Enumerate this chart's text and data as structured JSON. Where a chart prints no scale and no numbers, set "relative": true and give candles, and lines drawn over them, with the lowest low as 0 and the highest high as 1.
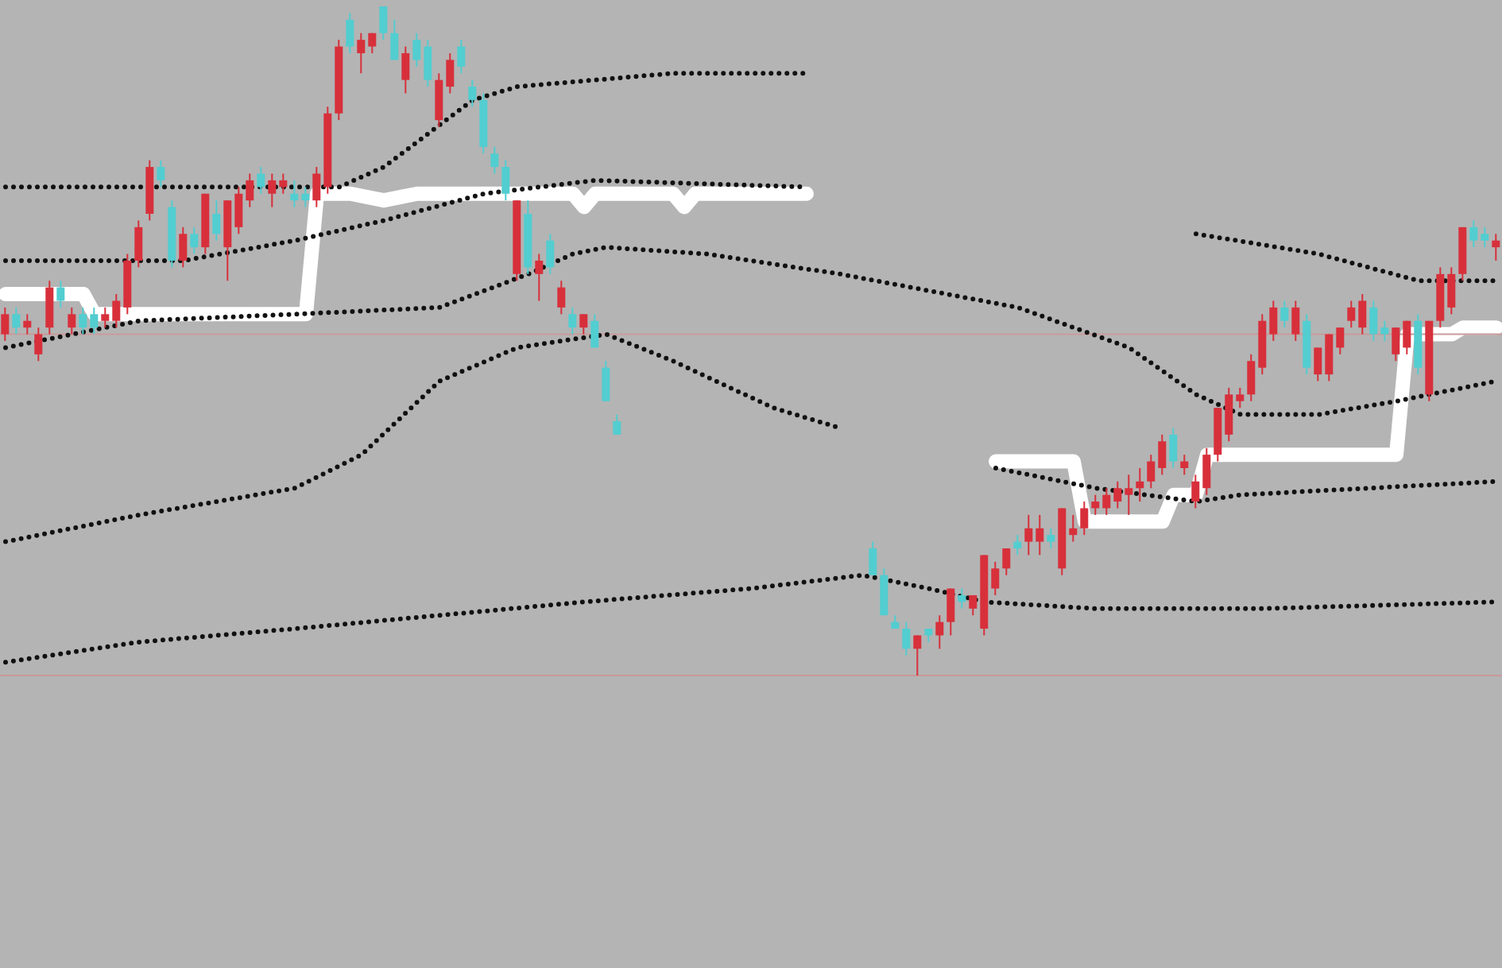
{
  "chart_data": {
    "type": "candlestick",
    "relative": true,
    "tick_labels": false,
    "categories": [
      null,
      null,
      null,
      null,
      null,
      null,
      null,
      null,
      null,
      null,
      null,
      null,
      null,
      null,
      null,
      null,
      null,
      null,
      null,
      null,
      null,
      null,
      null,
      null,
      null,
      null,
      null,
      null,
      null,
      null,
      null,
      null,
      null,
      null,
      null,
      null,
      null,
      null,
      null,
      null,
      null,
      null,
      null,
      null,
      null,
      null,
      null,
      null,
      null,
      null,
      null,
      null,
      null,
      null,
      null,
      null,
      null,
      null,
      null,
      null,
      null,
      null,
      null,
      null,
      null,
      null,
      null,
      null,
      null,
      null,
      null,
      null,
      null,
      null,
      null,
      null,
      null,
      null,
      null,
      null,
      null,
      null,
      null,
      null,
      null,
      null,
      null,
      null,
      null,
      null,
      null,
      null,
      null,
      null,
      null,
      null,
      null,
      null,
      null,
      null,
      null,
      null,
      null,
      null,
      null,
      null,
      null,
      null,
      null,
      null,
      null,
      null,
      null,
      null,
      null,
      null,
      null,
      null,
      null,
      null,
      null,
      null,
      null,
      null,
      null,
      null,
      null,
      null,
      null,
      null,
      null,
      null,
      null,
      null,
      null
    ],
    "ohlc": [
      [
        0.51,
        0.55,
        0.5,
        0.54
      ],
      [
        0.54,
        0.55,
        0.51,
        0.52
      ],
      [
        0.52,
        0.54,
        0.51,
        0.53
      ],
      [
        0.48,
        0.52,
        0.47,
        0.51
      ],
      [
        0.52,
        0.59,
        0.51,
        0.58
      ],
      [
        0.58,
        0.59,
        0.55,
        0.56
      ],
      [
        0.52,
        0.55,
        0.51,
        0.54
      ],
      [
        0.54,
        0.55,
        0.51,
        0.52
      ],
      [
        0.54,
        0.55,
        0.51,
        0.52
      ],
      [
        0.53,
        0.55,
        0.52,
        0.54
      ],
      [
        0.53,
        0.57,
        0.52,
        0.56
      ],
      [
        0.55,
        0.63,
        0.54,
        0.62
      ],
      [
        0.62,
        0.68,
        0.61,
        0.67
      ],
      [
        0.69,
        0.77,
        0.68,
        0.76
      ],
      [
        0.76,
        0.77,
        0.73,
        0.74
      ],
      [
        0.7,
        0.71,
        0.61,
        0.62
      ],
      [
        0.62,
        0.67,
        0.61,
        0.66
      ],
      [
        0.66,
        0.67,
        0.63,
        0.64
      ],
      [
        0.64,
        0.72,
        0.63,
        0.72
      ],
      [
        0.69,
        0.71,
        0.65,
        0.66
      ],
      [
        0.64,
        0.71,
        0.59,
        0.71
      ],
      [
        0.67,
        0.73,
        0.66,
        0.72
      ],
      [
        0.71,
        0.75,
        0.7,
        0.74
      ],
      [
        0.75,
        0.76,
        0.72,
        0.73
      ],
      [
        0.72,
        0.75,
        0.7,
        0.74
      ],
      [
        0.73,
        0.75,
        0.72,
        0.74
      ],
      [
        0.72,
        0.74,
        0.7,
        0.71
      ],
      [
        0.72,
        0.73,
        0.7,
        0.71
      ],
      [
        0.71,
        0.76,
        0.7,
        0.75
      ],
      [
        0.73,
        0.85,
        0.72,
        0.84
      ],
      [
        0.84,
        0.95,
        0.83,
        0.94
      ],
      [
        0.98,
        0.99,
        0.93,
        0.94
      ],
      [
        0.93,
        0.96,
        0.9,
        0.95
      ],
      [
        0.94,
        0.96,
        0.93,
        0.96
      ],
      [
        1.0,
        1.0,
        0.95,
        0.96
      ],
      [
        0.96,
        0.98,
        0.92,
        0.92
      ],
      [
        0.89,
        0.94,
        0.87,
        0.93
      ],
      [
        0.95,
        0.96,
        0.91,
        0.92
      ],
      [
        0.94,
        0.95,
        0.88,
        0.89
      ],
      [
        0.83,
        0.9,
        0.82,
        0.89
      ],
      [
        0.88,
        0.93,
        0.87,
        0.92
      ],
      [
        0.94,
        0.95,
        0.9,
        0.91
      ],
      [
        0.88,
        0.89,
        0.85,
        0.86
      ],
      [
        0.86,
        0.87,
        0.78,
        0.79
      ],
      [
        0.78,
        0.79,
        0.75,
        0.76
      ],
      [
        0.76,
        0.77,
        0.71,
        0.72
      ],
      [
        0.6,
        0.71,
        0.59,
        0.71
      ],
      [
        0.69,
        0.71,
        0.6,
        0.61
      ],
      [
        0.6,
        0.63,
        0.56,
        0.62
      ],
      [
        0.65,
        0.66,
        0.6,
        0.61
      ],
      [
        0.55,
        0.59,
        0.54,
        0.58
      ],
      [
        0.54,
        0.55,
        0.51,
        0.52
      ],
      [
        0.52,
        0.54,
        0.51,
        0.54
      ],
      [
        0.53,
        0.54,
        0.49,
        0.49
      ],
      [
        0.46,
        0.47,
        0.41,
        0.41
      ],
      [
        0.38,
        0.39,
        0.36,
        0.36
      ],
      null,
      null,
      null,
      null,
      null,
      null,
      null,
      null,
      null,
      null,
      null,
      null,
      null,
      null,
      null,
      null,
      null,
      null,
      null,
      null,
      null,
      null,
      [
        0.19,
        0.2,
        0.15,
        0.15
      ],
      [
        0.15,
        0.16,
        0.09,
        0.09
      ],
      [
        0.08,
        0.09,
        0.07,
        0.07
      ],
      [
        0.07,
        0.08,
        0.03,
        0.04
      ],
      [
        0.04,
        0.06,
        0,
        0.06
      ],
      [
        0.07,
        0.07,
        0.05,
        0.06
      ],
      [
        0.06,
        0.09,
        0.04,
        0.08
      ],
      [
        0.08,
        0.13,
        0.06,
        0.13
      ],
      [
        0.12,
        0.13,
        0.1,
        0.11
      ],
      [
        0.1,
        0.12,
        0.09,
        0.12
      ],
      [
        0.07,
        0.18,
        0.06,
        0.18
      ],
      [
        0.13,
        0.17,
        0.12,
        0.16
      ],
      [
        0.16,
        0.19,
        0.15,
        0.19
      ],
      [
        0.2,
        0.21,
        0.18,
        0.19
      ],
      [
        0.2,
        0.24,
        0.18,
        0.22
      ],
      [
        0.2,
        0.24,
        0.18,
        0.22
      ],
      [
        0.21,
        0.22,
        0.19,
        0.2
      ],
      [
        0.16,
        0.25,
        0.15,
        0.25
      ],
      [
        0.21,
        0.24,
        0.2,
        0.22
      ],
      [
        0.22,
        0.26,
        0.21,
        0.25
      ],
      [
        0.25,
        0.27,
        0.24,
        0.26
      ],
      [
        0.25,
        0.28,
        0.24,
        0.27
      ],
      [
        0.26,
        0.29,
        0.25,
        0.28
      ],
      [
        0.27,
        0.3,
        0.24,
        0.28
      ],
      [
        0.28,
        0.31,
        0.26,
        0.29
      ],
      [
        0.29,
        0.33,
        0.28,
        0.32
      ],
      [
        0.31,
        0.36,
        0.3,
        0.35
      ],
      [
        0.36,
        0.37,
        0.31,
        0.32
      ],
      [
        0.31,
        0.33,
        0.3,
        0.32
      ],
      [
        0.26,
        0.3,
        0.25,
        0.29
      ],
      [
        0.28,
        0.34,
        0.27,
        0.33
      ],
      [
        0.33,
        0.4,
        0.32,
        0.4
      ],
      [
        0.36,
        0.43,
        0.35,
        0.42
      ],
      [
        0.41,
        0.43,
        0.4,
        0.42
      ],
      [
        0.42,
        0.48,
        0.41,
        0.47
      ],
      [
        0.46,
        0.54,
        0.45,
        0.53
      ],
      [
        0.51,
        0.56,
        0.5,
        0.55
      ],
      [
        0.55,
        0.56,
        0.52,
        0.53
      ],
      [
        0.51,
        0.56,
        0.5,
        0.55
      ],
      [
        0.53,
        0.54,
        0.45,
        0.46
      ],
      [
        0.45,
        0.49,
        0.44,
        0.49
      ],
      [
        0.45,
        0.51,
        0.44,
        0.51
      ],
      [
        0.49,
        0.52,
        0.48,
        0.52
      ],
      [
        0.53,
        0.56,
        0.52,
        0.55
      ],
      [
        0.52,
        0.57,
        0.51,
        0.56
      ],
      [
        0.55,
        0.56,
        0.5,
        0.51
      ],
      [
        0.52,
        0.53,
        0.5,
        0.51
      ],
      [
        0.48,
        0.52,
        0.47,
        0.52
      ],
      [
        0.49,
        0.53,
        0.48,
        0.53
      ],
      [
        0.53,
        0.54,
        0.45,
        0.46
      ],
      [
        0.42,
        0.53,
        0.41,
        0.53
      ],
      [
        0.53,
        0.61,
        0.52,
        0.6
      ],
      [
        0.55,
        0.61,
        0.54,
        0.6
      ],
      [
        0.6,
        0.67,
        0.59,
        0.67
      ],
      [
        0.67,
        0.68,
        0.64,
        0.65
      ],
      [
        0.66,
        0.67,
        0.64,
        0.65
      ],
      [
        0.64,
        0.66,
        0.62,
        0.65
      ]
    ],
    "colors": [
      "#d7303b",
      "#52cdd0",
      "#d7303b",
      "#d7303b",
      "#d7303b",
      "#52cdd0",
      "#d7303b",
      "#52cdd0",
      "#52cdd0",
      "#d7303b",
      "#d7303b",
      "#d7303b",
      "#d7303b",
      "#d7303b",
      "#52cdd0",
      "#52cdd0",
      "#d7303b",
      "#52cdd0",
      "#d7303b",
      "#52cdd0",
      "#d7303b",
      "#d7303b",
      "#d7303b",
      "#52cdd0",
      "#d7303b",
      "#d7303b",
      "#52cdd0",
      "#52cdd0",
      "#d7303b",
      "#d7303b",
      "#d7303b",
      "#52cdd0",
      "#d7303b",
      "#d7303b",
      "#52cdd0",
      "#52cdd0",
      "#d7303b",
      "#52cdd0",
      "#52cdd0",
      "#d7303b",
      "#d7303b",
      "#52cdd0",
      "#52cdd0",
      "#52cdd0",
      "#52cdd0",
      "#52cdd0",
      "#d7303b",
      "#52cdd0",
      "#d7303b",
      "#52cdd0",
      "#d7303b",
      "#52cdd0",
      "#d7303b",
      "#52cdd0",
      "#52cdd0",
      "#52cdd0",
      null,
      null,
      null,
      null,
      null,
      null,
      null,
      null,
      null,
      null,
      null,
      null,
      null,
      null,
      null,
      null,
      null,
      null,
      null,
      null,
      null,
      null,
      "#52cdd0",
      "#52cdd0",
      "#52cdd0",
      "#52cdd0",
      "#d7303b",
      "#52cdd0",
      "#d7303b",
      "#d7303b",
      "#52cdd0",
      "#d7303b",
      "#d7303b",
      "#d7303b",
      "#d7303b",
      "#52cdd0",
      "#d7303b",
      "#d7303b",
      "#52cdd0",
      "#d7303b",
      "#d7303b",
      "#d7303b",
      "#d7303b",
      "#d7303b",
      "#d7303b",
      "#d7303b",
      "#d7303b",
      "#d7303b",
      "#d7303b",
      "#52cdd0",
      "#d7303b",
      "#d7303b",
      "#d7303b",
      "#d7303b",
      "#d7303b",
      "#d7303b",
      "#d7303b",
      "#d7303b",
      "#d7303b",
      "#52cdd0",
      "#d7303b",
      "#52cdd0",
      "#d7303b",
      "#d7303b",
      "#d7303b",
      "#d7303b",
      "#d7303b",
      "#52cdd0",
      "#52cdd0",
      "#d7303b",
      "#d7303b",
      "#52cdd0",
      "#d7303b",
      "#d7303b",
      "#d7303b",
      "#d7303b",
      "#52cdd0",
      "#52cdd0",
      "#d7303b"
    ],
    "series": [
      {
        "type": "line",
        "color": "#ffffff",
        "line_style": "solid",
        "values": [
          0.57,
          null,
          null,
          null,
          null,
          null,
          null,
          0.57,
          0.54,
          null,
          null,
          null,
          null,
          null,
          null,
          null,
          null,
          null,
          null,
          null,
          null,
          null,
          null,
          null,
          null,
          null,
          null,
          0.54,
          0.72,
          null,
          null,
          0.72,
          null,
          null,
          0.71,
          null,
          null,
          0.72,
          null,
          null,
          null,
          null,
          null,
          null,
          null,
          null,
          null,
          null,
          null,
          null,
          null,
          0.72,
          0.7,
          0.72,
          null,
          null,
          null,
          null,
          null,
          null,
          0.72,
          0.7,
          0.72,
          null,
          null,
          null,
          null,
          null,
          null,
          null,
          null,
          null,
          0.72,
          null,
          null,
          null,
          null,
          null,
          null,
          null,
          null,
          null,
          null,
          null,
          null,
          null,
          null,
          null,
          null,
          null,
          null,
          null,
          null,
          null,
          null,
          null,
          null,
          null,
          null,
          null,
          null,
          null,
          null,
          null,
          null,
          null,
          null,
          null,
          null,
          null,
          null,
          null,
          null,
          null,
          null,
          null,
          null,
          null,
          null,
          null,
          null,
          null,
          null,
          null,
          null,
          null,
          null,
          null,
          null,
          null,
          null,
          null,
          null,
          null,
          null
        ]
      },
      {
        "type": "line",
        "color": "#ffffff",
        "line_style": "solid",
        "values": [
          null,
          null,
          null,
          null,
          null,
          null,
          null,
          null,
          null,
          null,
          null,
          null,
          null,
          null,
          null,
          null,
          null,
          null,
          null,
          null,
          null,
          null,
          null,
          null,
          null,
          null,
          null,
          null,
          null,
          null,
          null,
          null,
          null,
          null,
          null,
          null,
          null,
          null,
          null,
          null,
          null,
          null,
          null,
          null,
          null,
          null,
          null,
          null,
          null,
          null,
          null,
          null,
          null,
          null,
          null,
          null,
          null,
          null,
          null,
          null,
          null,
          null,
          null,
          null,
          null,
          null,
          null,
          null,
          null,
          null,
          null,
          null,
          null,
          null,
          null,
          null,
          null,
          null,
          null,
          null,
          null,
          null,
          null,
          null,
          null,
          null,
          null,
          null,
          null,
          0.32,
          null,
          null,
          null,
          null,
          null,
          null,
          0.32,
          0.23,
          null,
          null,
          null,
          null,
          null,
          null,
          0.23,
          0.27,
          null,
          0.27,
          0.33,
          null,
          null,
          null,
          null,
          null,
          null,
          null,
          null,
          null,
          null,
          null,
          null,
          null,
          null,
          null,
          null,
          0.33,
          0.51,
          null,
          null,
          null,
          0.51,
          0.52,
          null,
          null,
          0.52
        ]
      },
      {
        "type": "line",
        "color": "#111111",
        "line_style": "dotted",
        "values": [
          0.73,
          null,
          null,
          null,
          null,
          null,
          null,
          null,
          null,
          null,
          null,
          null,
          null,
          null,
          null,
          null,
          null,
          null,
          null,
          null,
          null,
          null,
          null,
          null,
          null,
          null,
          null,
          null,
          null,
          null,
          0.73,
          null,
          null,
          null,
          0.76,
          null,
          null,
          null,
          0.81,
          null,
          null,
          null,
          0.86,
          null,
          null,
          null,
          0.88,
          null,
          null,
          null,
          null,
          null,
          null,
          0.89,
          null,
          null,
          null,
          null,
          null,
          null,
          0.9,
          null,
          null,
          null,
          null,
          null,
          null,
          null,
          null,
          null,
          null,
          null,
          0.9,
          null,
          null,
          null,
          null,
          null,
          null,
          null,
          null,
          null,
          null,
          null,
          null,
          null,
          null,
          null,
          null,
          null,
          null,
          null,
          null,
          null,
          null,
          null,
          null,
          null,
          null,
          null,
          null,
          null,
          null,
          null,
          null,
          null,
          null,
          null,
          null,
          null,
          null,
          null,
          null,
          null,
          null,
          null,
          null,
          null,
          null,
          null,
          null,
          null,
          null,
          null,
          null,
          null,
          null,
          null,
          null,
          null,
          null,
          null,
          null,
          null,
          null
        ]
      },
      {
        "type": "line",
        "color": "#111111",
        "line_style": "dotted",
        "values": [
          0.62,
          null,
          null,
          null,
          null,
          null,
          null,
          null,
          null,
          null,
          null,
          null,
          null,
          null,
          null,
          null,
          0.62,
          null,
          null,
          null,
          null,
          null,
          null,
          null,
          null,
          null,
          0.65,
          null,
          null,
          null,
          null,
          null,
          null,
          null,
          0.68,
          null,
          null,
          null,
          null,
          null,
          null,
          null,
          null,
          0.72,
          null,
          null,
          null,
          null,
          null,
          null,
          null,
          null,
          null,
          0.74,
          null,
          null,
          null,
          null,
          null,
          null,
          null,
          null,
          null,
          null,
          null,
          null,
          null,
          null,
          null,
          null,
          null,
          null,
          0.73,
          null,
          null,
          null,
          null,
          null,
          null,
          null,
          null,
          null,
          null,
          null,
          null,
          null,
          null,
          null,
          null,
          null,
          null,
          null,
          null,
          null,
          null,
          null,
          null,
          null,
          null,
          null,
          null,
          null,
          null,
          null,
          null,
          null,
          null,
          null,
          null,
          null,
          null,
          null,
          null,
          null,
          null,
          null,
          null,
          null,
          null,
          null,
          null,
          null,
          null,
          null,
          null,
          null,
          null,
          null,
          null,
          null,
          null,
          null,
          null,
          null,
          null
        ]
      },
      {
        "type": "line",
        "color": "#111111",
        "line_style": "dotted",
        "values": [
          null,
          null,
          null,
          null,
          null,
          null,
          null,
          null,
          null,
          null,
          null,
          null,
          null,
          null,
          null,
          null,
          null,
          null,
          null,
          null,
          null,
          null,
          null,
          null,
          null,
          null,
          null,
          null,
          null,
          null,
          null,
          null,
          null,
          null,
          null,
          null,
          null,
          null,
          null,
          null,
          null,
          null,
          null,
          null,
          null,
          null,
          null,
          null,
          null,
          null,
          null,
          null,
          null,
          null,
          null,
          null,
          null,
          null,
          null,
          null,
          null,
          null,
          null,
          null,
          null,
          null,
          null,
          null,
          null,
          null,
          null,
          null,
          null,
          null,
          null,
          null,
          null,
          null,
          null,
          null,
          null,
          null,
          null,
          null,
          null,
          null,
          null,
          null,
          null,
          null,
          null,
          null,
          null,
          null,
          null,
          null,
          null,
          null,
          null,
          null,
          null,
          null,
          null,
          null,
          null,
          null,
          null,
          0.66,
          null,
          null,
          null,
          null,
          null,
          null,
          null,
          null,
          null,
          null,
          0.63,
          null,
          null,
          null,
          null,
          null,
          null,
          null,
          null,
          0.59,
          null,
          null,
          null,
          null,
          null,
          null,
          0.59
        ]
      },
      {
        "type": "line",
        "color": "#111111",
        "line_style": "dotted",
        "values": [
          0.49,
          null,
          null,
          null,
          null,
          null,
          null,
          null,
          null,
          null,
          null,
          null,
          0.53,
          null,
          null,
          null,
          null,
          null,
          null,
          null,
          null,
          null,
          null,
          null,
          null,
          null,
          0.54,
          null,
          null,
          null,
          null,
          null,
          null,
          null,
          null,
          null,
          null,
          null,
          null,
          0.55,
          null,
          null,
          null,
          null,
          null,
          null,
          null,
          0.6,
          null,
          null,
          null,
          0.63,
          null,
          null,
          0.64,
          null,
          null,
          null,
          null,
          null,
          null,
          null,
          null,
          0.63,
          null,
          null,
          null,
          null,
          null,
          null,
          null,
          null,
          null,
          null,
          null,
          0.6,
          null,
          null,
          null,
          null,
          null,
          null,
          null,
          null,
          null,
          null,
          null,
          null,
          null,
          null,
          null,
          0.55,
          null,
          null,
          null,
          null,
          null,
          null,
          null,
          null,
          null,
          0.49,
          null,
          null,
          null,
          null,
          null,
          0.42,
          null,
          null,
          null,
          0.39,
          null,
          null,
          null,
          null,
          null,
          null,
          0.39,
          null,
          null,
          null,
          null,
          null,
          null,
          0.41,
          null,
          null,
          null,
          null,
          null,
          null,
          null,
          null,
          0.44
        ]
      },
      {
        "type": "line",
        "color": "#111111",
        "line_style": "dotted",
        "values": [
          0.2,
          null,
          null,
          null,
          null,
          null,
          null,
          null,
          null,
          null,
          null,
          null,
          0.24,
          null,
          null,
          null,
          null,
          null,
          null,
          null,
          null,
          null,
          null,
          null,
          null,
          null,
          0.28,
          null,
          null,
          null,
          null,
          null,
          0.33,
          null,
          null,
          null,
          null,
          null,
          null,
          0.44,
          null,
          null,
          null,
          null,
          null,
          null,
          0.49,
          null,
          null,
          null,
          null,
          null,
          null,
          null,
          0.51,
          null,
          null,
          null,
          null,
          null,
          0.47,
          null,
          null,
          null,
          null,
          null,
          null,
          null,
          null,
          0.4,
          null,
          null,
          null,
          null,
          null,
          0.37,
          null,
          null,
          null,
          null,
          null,
          null,
          null,
          null,
          null,
          null,
          null,
          null,
          null,
          null,
          null,
          null,
          null,
          null,
          null,
          null,
          null,
          null,
          null,
          null,
          null,
          null,
          null,
          null,
          null,
          null,
          null,
          null,
          null,
          null,
          null,
          null,
          null,
          null,
          null,
          null,
          null,
          null,
          null,
          null,
          null,
          null,
          null,
          null,
          null,
          null,
          null,
          null,
          null,
          null,
          null,
          null,
          null,
          null,
          null
        ]
      },
      {
        "type": "line",
        "color": "#111111",
        "line_style": "dotted",
        "values": [
          null,
          null,
          null,
          null,
          null,
          null,
          null,
          null,
          null,
          null,
          null,
          null,
          null,
          null,
          null,
          null,
          null,
          null,
          null,
          null,
          null,
          null,
          null,
          null,
          null,
          null,
          null,
          null,
          null,
          null,
          null,
          null,
          null,
          null,
          null,
          null,
          null,
          null,
          null,
          null,
          null,
          null,
          null,
          null,
          null,
          null,
          null,
          null,
          null,
          null,
          null,
          null,
          null,
          null,
          null,
          null,
          null,
          null,
          null,
          null,
          null,
          null,
          null,
          null,
          null,
          null,
          null,
          null,
          null,
          null,
          null,
          null,
          null,
          null,
          null,
          null,
          null,
          null,
          null,
          null,
          null,
          null,
          null,
          null,
          null,
          null,
          null,
          null,
          null,
          0.31,
          null,
          null,
          null,
          null,
          null,
          null,
          null,
          null,
          0.28,
          null,
          null,
          null,
          null,
          null,
          null,
          null,
          null,
          0.26,
          null,
          null,
          null,
          0.27,
          null,
          null,
          null,
          null,
          null,
          null,
          null,
          null,
          null,
          null,
          null,
          null,
          null,
          null,
          null,
          null,
          null,
          null,
          null,
          null,
          null,
          null,
          0.29
        ]
      },
      {
        "type": "line",
        "color": "#111111",
        "line_style": "dotted",
        "values": [
          0.02,
          null,
          null,
          null,
          null,
          null,
          null,
          null,
          null,
          null,
          null,
          null,
          0.05,
          null,
          null,
          null,
          null,
          null,
          null,
          null,
          null,
          null,
          null,
          null,
          null,
          null,
          0.07,
          null,
          null,
          null,
          null,
          null,
          null,
          null,
          null,
          null,
          null,
          null,
          null,
          0.09,
          null,
          null,
          null,
          null,
          null,
          null,
          null,
          null,
          null,
          null,
          null,
          null,
          0.11,
          null,
          null,
          null,
          null,
          null,
          null,
          null,
          null,
          null,
          null,
          null,
          null,
          null,
          null,
          0.13,
          null,
          null,
          null,
          null,
          null,
          null,
          null,
          null,
          null,
          0.15,
          null,
          null,
          null,
          null,
          null,
          0.13,
          null,
          null,
          null,
          null,
          0.11,
          null,
          null,
          null,
          null,
          null,
          null,
          null,
          null,
          null,
          0.1,
          null,
          null,
          null,
          null,
          null,
          null,
          null,
          null,
          null,
          null,
          null,
          null,
          null,
          null,
          0.1,
          null,
          null,
          null,
          null,
          null,
          null,
          null,
          null,
          null,
          null,
          null,
          null,
          null,
          null,
          null,
          null,
          null,
          null,
          null,
          null,
          0.11
        ]
      }
    ],
    "ref_lines": [
      {
        "axis": "y",
        "value": 0.51,
        "color": "#c99a9a"
      },
      {
        "axis": "y",
        "value": 0,
        "color": "#c99a9a"
      }
    ]
  }
}
